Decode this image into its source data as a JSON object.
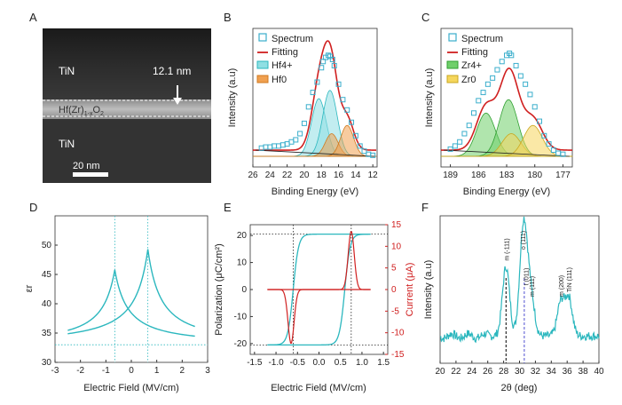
{
  "panels": [
    {
      "id": "A",
      "label": "A"
    },
    {
      "id": "B",
      "label": "B"
    },
    {
      "id": "C",
      "label": "C"
    },
    {
      "id": "D",
      "label": "D"
    },
    {
      "id": "E",
      "label": "E"
    },
    {
      "id": "F",
      "label": "F"
    }
  ],
  "micrograph": {
    "top_layer": "TiN",
    "bottom_layer": "TiN",
    "film_label": "Hf(Zr)1-xO2",
    "film_base": "Hf(Zr)",
    "film_sub": "1-x",
    "film_tail": "O",
    "film_sub2": "2",
    "thickness": "12.1 nm",
    "scalebar": "20 nm"
  },
  "colors": {
    "teal": "#2bb7be",
    "red": "#d02020",
    "cyan_fill": "#8fdfe3",
    "orange_fill": "#f0a050",
    "green_fill": "#6fcf6a",
    "yellow_fill": "#f5d65c",
    "spectrum_marker": "#3aaecc"
  },
  "chart_data": [
    {
      "panel": "B",
      "type": "scatter",
      "xlabel": "Binding Energy (eV)",
      "ylabel": "Intensity (a.u)",
      "xlim": [
        26,
        11.5
      ],
      "x_ticks": [
        26,
        24,
        22,
        20,
        18,
        16,
        14,
        12
      ],
      "legend": [
        "Spectrum",
        "Fitting",
        "Hf4+",
        "Hf0"
      ],
      "legend_position": "top-right",
      "spectrum_x": [
        25.0,
        24.5,
        24.0,
        23.5,
        23.0,
        22.5,
        22.0,
        21.5,
        21.0,
        20.5,
        20.0,
        19.5,
        19.0,
        18.5,
        18.0,
        17.8,
        17.5,
        17.2,
        17.0,
        16.7,
        16.5,
        16.0,
        15.5,
        15.0,
        14.5,
        14.0,
        13.5,
        13.0,
        12.5,
        12.0
      ],
      "spectrum_y": [
        0.08,
        0.09,
        0.09,
        0.1,
        0.1,
        0.11,
        0.12,
        0.14,
        0.16,
        0.22,
        0.32,
        0.48,
        0.62,
        0.72,
        0.86,
        0.92,
        0.96,
        0.98,
        0.97,
        0.94,
        0.88,
        0.7,
        0.55,
        0.45,
        0.33,
        0.2,
        0.1,
        0.05,
        0.02,
        0.01
      ],
      "components": [
        {
          "name": "Hf4+",
          "color": "cyan",
          "centers": [
            18.3,
            17.0
          ],
          "heights": [
            0.56,
            0.64
          ],
          "width": 0.85
        },
        {
          "name": "Hf0",
          "color": "orange",
          "centers": [
            16.8,
            15.0
          ],
          "heights": [
            0.22,
            0.3
          ],
          "width": 0.75
        }
      ]
    },
    {
      "panel": "C",
      "type": "scatter",
      "xlabel": "Binding Energy (eV)",
      "ylabel": "Intensity (a.u)",
      "xlim": [
        190,
        176
      ],
      "x_ticks": [
        189,
        186,
        183,
        180,
        177
      ],
      "legend": [
        "Spectrum",
        "Fitting",
        "Zr4+",
        "Zr0"
      ],
      "legend_position": "top-right",
      "spectrum_x": [
        189.0,
        188.5,
        188.0,
        187.5,
        187.0,
        186.5,
        186.0,
        185.5,
        185.0,
        184.5,
        184.0,
        183.5,
        183.0,
        182.7,
        182.5,
        182.0,
        181.5,
        181.0,
        180.5,
        180.0,
        179.5,
        179.0,
        178.5,
        178.0,
        177.5,
        177.0
      ],
      "spectrum_y": [
        0.07,
        0.1,
        0.14,
        0.22,
        0.3,
        0.42,
        0.54,
        0.62,
        0.7,
        0.76,
        0.84,
        0.92,
        0.98,
        1.0,
        0.98,
        0.88,
        0.78,
        0.7,
        0.6,
        0.48,
        0.34,
        0.2,
        0.12,
        0.06,
        0.03,
        0.02
      ],
      "components": [
        {
          "name": "Zr4+",
          "color": "green",
          "centers": [
            185.2,
            182.8
          ],
          "heights": [
            0.42,
            0.55
          ],
          "width": 1.0
        },
        {
          "name": "Zr0",
          "color": "yellow",
          "centers": [
            182.5,
            180.2
          ],
          "heights": [
            0.22,
            0.3
          ],
          "width": 1.0
        }
      ]
    },
    {
      "panel": "D",
      "type": "line",
      "xlabel": "Electric Field (MV/cm)",
      "ylabel": "εr",
      "xlim": [
        -3,
        3
      ],
      "ylim": [
        30,
        55
      ],
      "x_ticks": [
        -3,
        -2,
        -1,
        0,
        1,
        2,
        3
      ],
      "y_ticks": [
        30,
        35,
        40,
        45,
        50
      ],
      "series": [
        {
          "peak_x": -0.65,
          "peak_y": 45.8,
          "base": 33,
          "x_range": [
            -2.5,
            2.5
          ]
        },
        {
          "peak_x": 0.65,
          "peak_y": 49.3,
          "base": 33,
          "x_range": [
            -2.5,
            2.5
          ]
        }
      ],
      "guides": {
        "vertical": [
          -0.65,
          0.65
        ],
        "horizontal": [
          33
        ]
      }
    },
    {
      "panel": "E",
      "type": "line",
      "xlabel": "Electric Field (MV/cm)",
      "ylabel_left": "Polarization (μC/cm²)",
      "ylabel_right": "Current (μA)",
      "xlim": [
        -1.6,
        1.6
      ],
      "ylim_left": [
        -24,
        24
      ],
      "ylim_right": [
        -15,
        15
      ],
      "x_ticks": [
        -1.5,
        -1.0,
        -0.5,
        0.0,
        0.5,
        1.0,
        1.5
      ],
      "y_ticks_left": [
        -20,
        -10,
        0,
        10,
        20
      ],
      "y_ticks_right": [
        -15,
        -10,
        -5,
        0,
        5,
        10,
        15
      ],
      "hysteresis": {
        "Ps": 20.5,
        "Ec_pos": 0.6,
        "Ec_neg": -0.6,
        "x_range": [
          -1.2,
          1.2
        ]
      },
      "current": {
        "peak_pos_x": 0.75,
        "peak_pos_y": 13.5,
        "peak_neg_x": -0.65,
        "peak_neg_y": -12.5
      },
      "guides": {
        "vertical": [
          -0.6,
          0.75
        ],
        "horizontal": [
          20.5,
          -20.5
        ]
      }
    },
    {
      "panel": "F",
      "type": "line",
      "xlabel": "2θ (deg)",
      "ylabel": "Intensity (a.u)",
      "xlim": [
        20,
        40
      ],
      "x_ticks": [
        20,
        22,
        24,
        26,
        28,
        30,
        32,
        34,
        36,
        38,
        40
      ],
      "peaks": [
        {
          "x": 28.3,
          "h": 0.62,
          "label": "m (-111)"
        },
        {
          "x": 30.4,
          "h": 0.72,
          "label": "o (111)"
        },
        {
          "x": 30.8,
          "h": 0.4,
          "label": "t (011)"
        },
        {
          "x": 31.5,
          "h": 0.3,
          "label": "m (111)"
        },
        {
          "x": 35.2,
          "h": 0.3,
          "label": "m (200)"
        },
        {
          "x": 36.2,
          "h": 0.34,
          "label": "TiN (111)"
        }
      ],
      "guides": [
        {
          "x": 28.3,
          "color": "black"
        },
        {
          "x": 30.6,
          "color": "#5050d0"
        }
      ]
    }
  ]
}
